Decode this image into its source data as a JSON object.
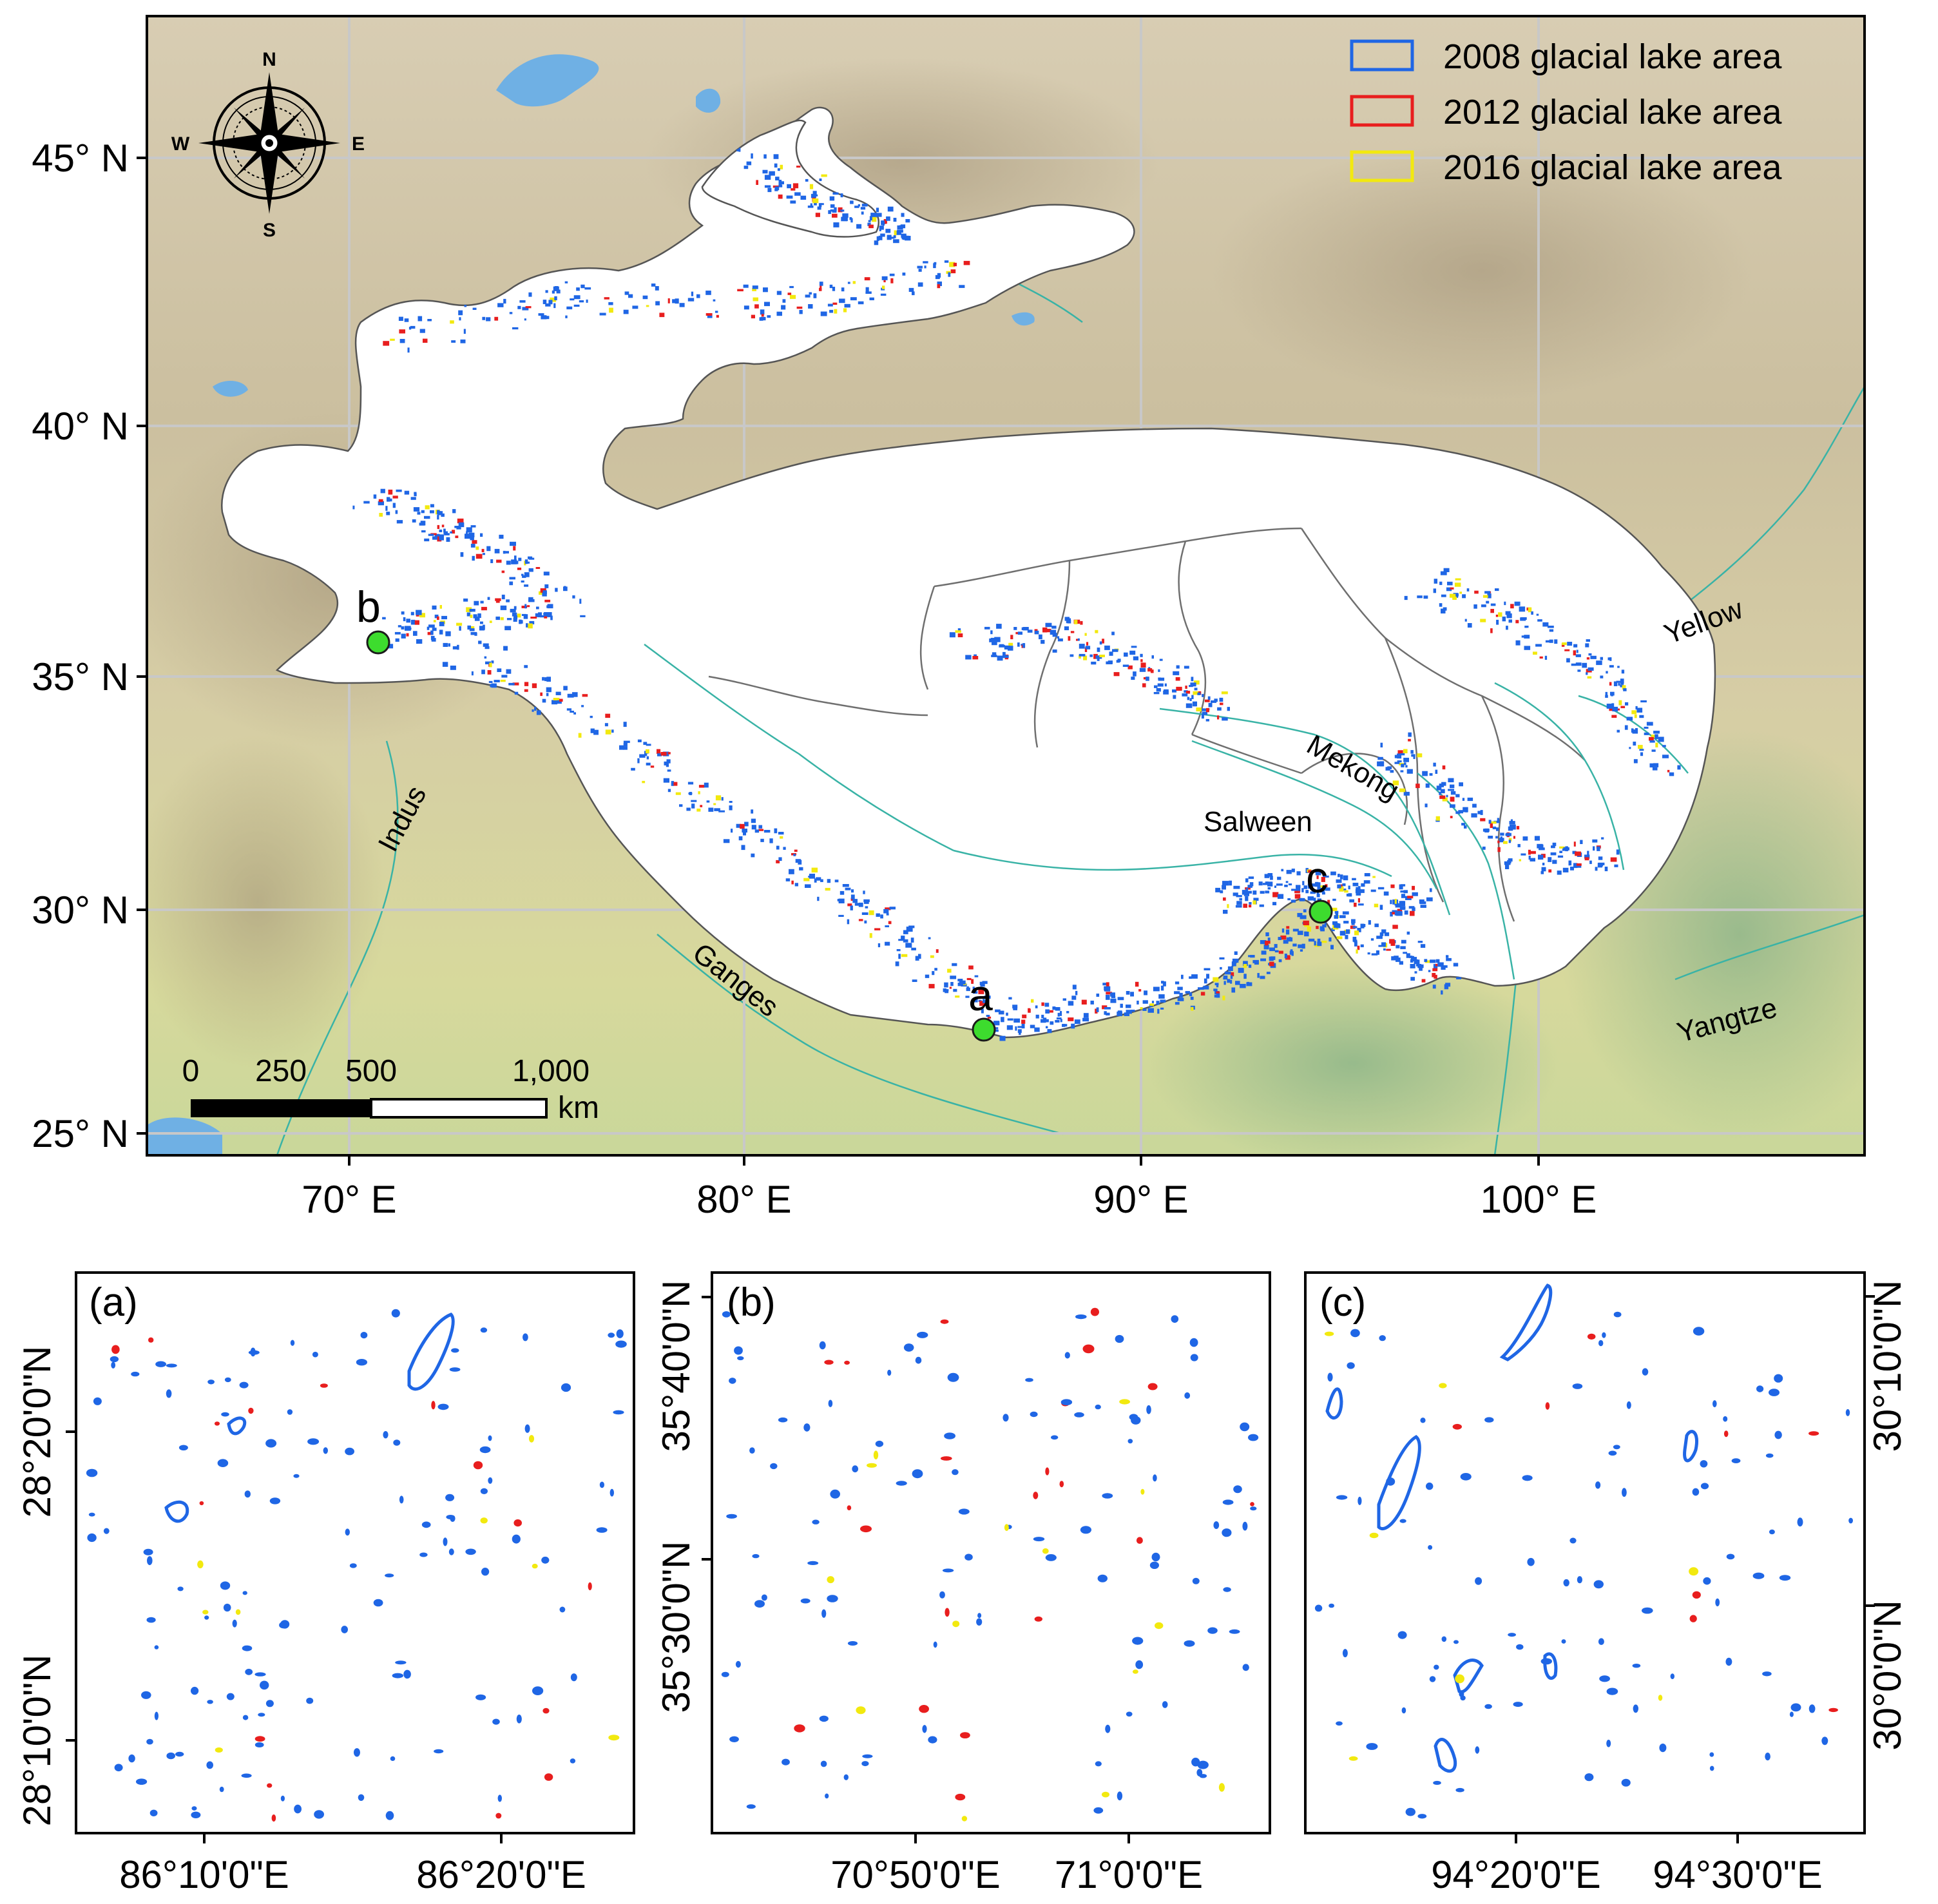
{
  "main_map": {
    "lat_labels": [
      "45° N",
      "40° N",
      "35° N",
      "30° N",
      "25° N"
    ],
    "lon_labels": [
      "70° E",
      "80° E",
      "90° E",
      "100° E"
    ],
    "compass": {
      "n": "N",
      "s": "S",
      "e": "E",
      "w": "W"
    },
    "legend": [
      {
        "label": "2008 glacial lake area",
        "color": "#1f66e5"
      },
      {
        "label": "2012 glacial lake area",
        "color": "#e81e1e"
      },
      {
        "label": "2016 glacial lake area",
        "color": "#f2e90f"
      }
    ],
    "rivers": {
      "yellow": "Yellow",
      "mekong": "Mekong",
      "salween": "Salween",
      "indus": "Indus",
      "ganges": "Ganges",
      "yangtze": "Yangtze"
    },
    "sites": [
      {
        "label": "a"
      },
      {
        "label": "b"
      },
      {
        "label": "c"
      }
    ],
    "scale_bar": {
      "ticks": [
        "0",
        "250",
        "500",
        "1,000"
      ],
      "unit": "km"
    }
  },
  "insets": {
    "a": {
      "label": "(a)",
      "y_labels": [
        "28°20'0\"N",
        "28°10'0\"N"
      ],
      "x_labels": [
        "86°10'0\"E",
        "86°20'0\"E"
      ]
    },
    "b": {
      "label": "(b)",
      "y_labels": [
        "35°40'0\"N",
        "35°30'0\"N"
      ],
      "x_labels": [
        "70°50'0\"E",
        "71°0'0\"E"
      ]
    },
    "c": {
      "label": "(c)",
      "y_labels": [
        "30°10'0\"N",
        "30°0'0\"N"
      ],
      "x_labels": [
        "94°20'0\"E",
        "94°30'0\"E"
      ]
    }
  },
  "colors": {
    "lake_2008": "#1f66e5",
    "lake_2012": "#e81e1e",
    "lake_2016": "#f2e90f",
    "site_marker": "#3ddc2e",
    "graticule": "#c8c8c8",
    "study_area": "#ffffff",
    "basin_outline": "#6f6f6f",
    "river_line": "#39b3a6",
    "water_body": "#6fb0e4"
  }
}
